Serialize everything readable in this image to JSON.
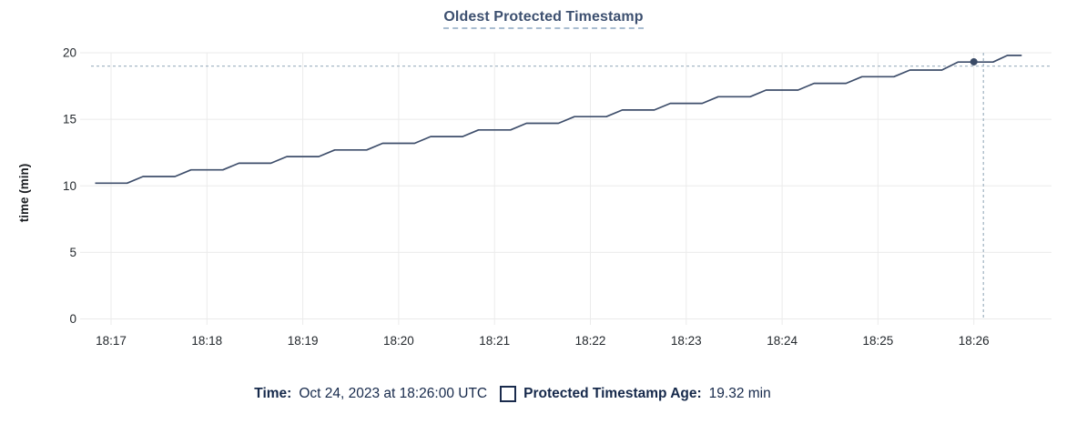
{
  "header": {
    "title": "Oldest Protected Timestamp"
  },
  "chart_data": {
    "type": "line",
    "title": "Oldest Protected Timestamp",
    "xlabel": "",
    "ylabel": "time (min)",
    "ylim": [
      0,
      20
    ],
    "yticks": [
      0,
      5,
      10,
      15,
      20
    ],
    "grid": true,
    "legend_position": "bottom",
    "x_unit_note": "t = seconds after 18:17:00 UTC",
    "xticks": [
      {
        "t": 0,
        "label": "18:17"
      },
      {
        "t": 60,
        "label": "18:18"
      },
      {
        "t": 120,
        "label": "18:19"
      },
      {
        "t": 180,
        "label": "18:20"
      },
      {
        "t": 240,
        "label": "18:21"
      },
      {
        "t": 300,
        "label": "18:22"
      },
      {
        "t": 360,
        "label": "18:23"
      },
      {
        "t": 420,
        "label": "18:24"
      },
      {
        "t": 480,
        "label": "18:25"
      },
      {
        "t": 540,
        "label": "18:26"
      }
    ],
    "series": [
      {
        "name": "Protected Timestamp Age",
        "unit": "min",
        "points": [
          [
            -10,
            10.2
          ],
          [
            10,
            10.2
          ],
          [
            20,
            10.7
          ],
          [
            40,
            10.7
          ],
          [
            50,
            11.2
          ],
          [
            70,
            11.2
          ],
          [
            80,
            11.7
          ],
          [
            100,
            11.7
          ],
          [
            110,
            12.2
          ],
          [
            130,
            12.2
          ],
          [
            140,
            12.7
          ],
          [
            160,
            12.7
          ],
          [
            170,
            13.2
          ],
          [
            190,
            13.2
          ],
          [
            200,
            13.7
          ],
          [
            220,
            13.7
          ],
          [
            230,
            14.2
          ],
          [
            250,
            14.2
          ],
          [
            260,
            14.7
          ],
          [
            280,
            14.7
          ],
          [
            290,
            15.2
          ],
          [
            310,
            15.2
          ],
          [
            320,
            15.7
          ],
          [
            340,
            15.7
          ],
          [
            350,
            16.2
          ],
          [
            370,
            16.2
          ],
          [
            380,
            16.7
          ],
          [
            400,
            16.7
          ],
          [
            410,
            17.2
          ],
          [
            430,
            17.2
          ],
          [
            440,
            17.7
          ],
          [
            460,
            17.7
          ],
          [
            470,
            18.2
          ],
          [
            490,
            18.2
          ],
          [
            500,
            18.7
          ],
          [
            520,
            18.7
          ],
          [
            530,
            19.3
          ],
          [
            552,
            19.3
          ],
          [
            561,
            19.8
          ],
          [
            570,
            19.8
          ]
        ]
      }
    ],
    "hover": {
      "time": "18:26:00",
      "point_t": 540,
      "value": 19.32,
      "crosshair_t": 546,
      "crosshair_value": 19.0
    }
  },
  "footer_legend": {
    "time_label": "Time:",
    "time_value": "Oct 24, 2023 at 18:26:00 UTC",
    "series_label": "Protected Timestamp Age:",
    "series_value": "19.32 min"
  },
  "colors": {
    "title_text": "#3d5070",
    "title_underline": "#a9bdd1",
    "series_line": "#3e4e6b",
    "hover_dot": "#394a66",
    "gridline": "#ebebeb",
    "tick_text": "#24292e",
    "axis_label_text": "#1a1d21",
    "crosshair": "#a6b7c6",
    "legend_text": "#16294b"
  }
}
